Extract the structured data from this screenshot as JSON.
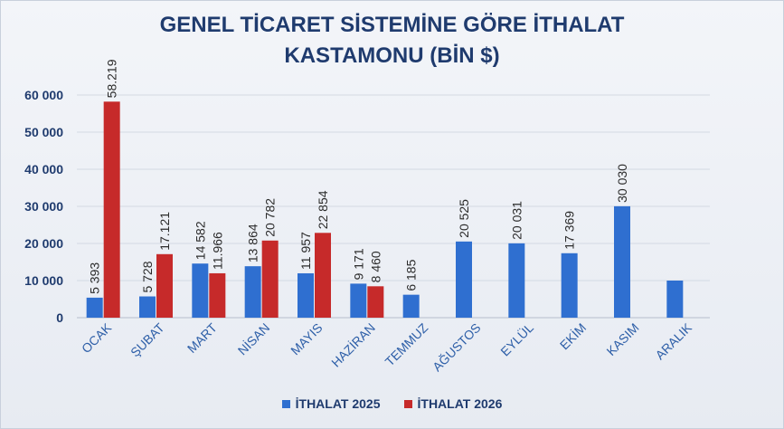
{
  "chart_data": {
    "type": "bar",
    "title_line1": "GENEL TİCARET SİSTEMİNE GÖRE İTHALAT",
    "title_line2": "KASTAMONU (BİN $)",
    "categories": [
      "OCAK",
      "ŞUBAT",
      "MART",
      "NİSAN",
      "MAYIS",
      "HAZİRAN",
      "TEMMUZ",
      "AĞUSTOS",
      "EYLÜL",
      "EKİM",
      "KASIM",
      "ARALIK"
    ],
    "series": [
      {
        "name": "İTHALAT 2025",
        "color": "#2f6fd0",
        "values": [
          5393,
          5728,
          14582,
          13864,
          11957,
          9171,
          6185,
          20525,
          20031,
          17369,
          30030,
          10000
        ],
        "labels": [
          "5 393",
          "5 728",
          "14 582",
          "13 864",
          "11 957",
          "9 171",
          "6 185",
          "20 525",
          "20 031",
          "17 369",
          "30 030",
          ""
        ]
      },
      {
        "name": "İTHALAT 2026",
        "color": "#c62a2a",
        "values": [
          58219,
          17121,
          11966,
          20782,
          22854,
          8460,
          null,
          null,
          null,
          null,
          null,
          null
        ],
        "labels": [
          "58.219",
          "17.121",
          "11.966",
          "20 782",
          "22 854",
          "8 460",
          "",
          "",
          "",
          "",
          "",
          ""
        ]
      }
    ],
    "ylim": [
      0,
      60000
    ],
    "yticks": [
      0,
      10000,
      20000,
      30000,
      40000,
      50000,
      60000
    ],
    "ytick_labels": [
      "0",
      "10 000",
      "20 000",
      "30 000",
      "40 000",
      "50 000",
      "60 000"
    ],
    "grid": true,
    "legend_position": "bottom"
  }
}
